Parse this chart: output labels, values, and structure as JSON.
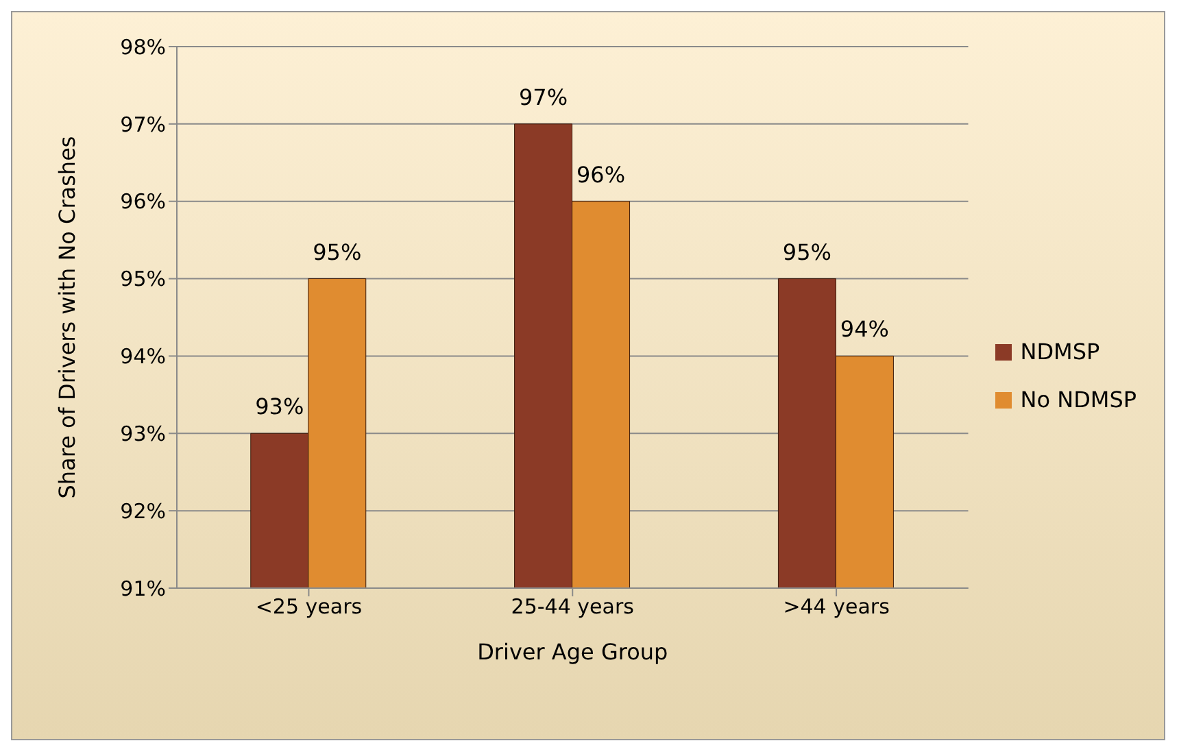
{
  "chart_data": {
    "type": "bar",
    "xlabel": "Driver Age Group",
    "ylabel": "Share of Drivers with No Crashes",
    "categories": [
      "<25 years",
      "25-44 years",
      ">44 years"
    ],
    "series": [
      {
        "name": "NDMSP",
        "color": "#8b3a26",
        "values": [
          93,
          97,
          95
        ],
        "value_labels": [
          "93%",
          "97%",
          "95%"
        ]
      },
      {
        "name": "No NDMSP",
        "color": "#e08c30",
        "values": [
          95,
          96,
          94
        ],
        "value_labels": [
          "95%",
          "96%",
          "94%"
        ]
      }
    ],
    "ylim": [
      91,
      98
    ],
    "yticks": [
      {
        "value": 91,
        "label": "91%"
      },
      {
        "value": 92,
        "label": "92%"
      },
      {
        "value": 93,
        "label": "93%"
      },
      {
        "value": 94,
        "label": "94%"
      },
      {
        "value": 95,
        "label": "95%"
      },
      {
        "value": 96,
        "label": "96%"
      },
      {
        "value": 97,
        "label": "97%"
      },
      {
        "value": 98,
        "label": "98%"
      }
    ],
    "grid": "y",
    "legend": "right"
  }
}
